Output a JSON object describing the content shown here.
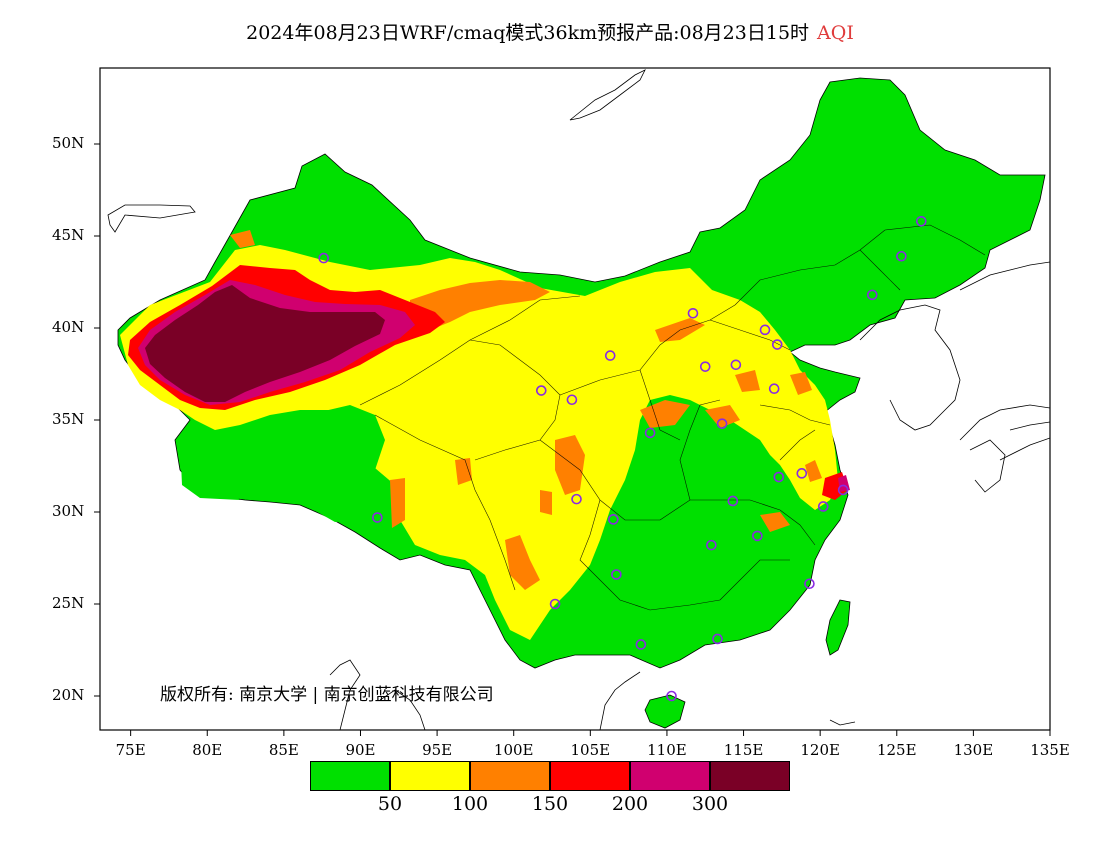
{
  "title": {
    "main": "2024年08月23日WRF/cmaq模式36km预报产品:08月23日15时",
    "variable": "AQI"
  },
  "map": {
    "lon_range": [
      73,
      135
    ],
    "lat_range": [
      18,
      54
    ],
    "lat_ticks": [
      "50N",
      "45N",
      "40N",
      "35N",
      "30N",
      "25N",
      "20N"
    ],
    "lon_ticks": [
      "75E",
      "80E",
      "85E",
      "90E",
      "95E",
      "100E",
      "105E",
      "110E",
      "115E",
      "120E",
      "125E",
      "130E",
      "135E"
    ],
    "background_aqi_color": "#00e000",
    "copyright": "版权所有: 南京大学 | 南京创蓝科技有限公司"
  },
  "legend": {
    "colors": [
      "#00e000",
      "#ffff00",
      "#ff8000",
      "#ff0000",
      "#d0006f",
      "#7a0026"
    ],
    "labels": [
      "50",
      "100",
      "150",
      "200",
      "300"
    ]
  },
  "stations": [
    {
      "lon": 87.6,
      "lat": 43.8
    },
    {
      "lon": 91.1,
      "lat": 29.7
    },
    {
      "lon": 101.8,
      "lat": 36.6
    },
    {
      "lon": 103.8,
      "lat": 36.1
    },
    {
      "lon": 106.3,
      "lat": 38.5
    },
    {
      "lon": 111.7,
      "lat": 40.8
    },
    {
      "lon": 112.5,
      "lat": 37.9
    },
    {
      "lon": 114.5,
      "lat": 38.0
    },
    {
      "lon": 116.4,
      "lat": 39.9
    },
    {
      "lon": 117.2,
      "lat": 39.1
    },
    {
      "lon": 117.0,
      "lat": 36.7
    },
    {
      "lon": 113.6,
      "lat": 34.8
    },
    {
      "lon": 108.9,
      "lat": 34.3
    },
    {
      "lon": 104.1,
      "lat": 30.7
    },
    {
      "lon": 106.5,
      "lat": 29.6
    },
    {
      "lon": 106.7,
      "lat": 26.6
    },
    {
      "lon": 102.7,
      "lat": 25.0
    },
    {
      "lon": 108.3,
      "lat": 22.8
    },
    {
      "lon": 113.3,
      "lat": 23.1
    },
    {
      "lon": 110.3,
      "lat": 20.0
    },
    {
      "lon": 112.9,
      "lat": 28.2
    },
    {
      "lon": 114.3,
      "lat": 30.6
    },
    {
      "lon": 115.9,
      "lat": 28.7
    },
    {
      "lon": 119.3,
      "lat": 26.1
    },
    {
      "lon": 120.2,
      "lat": 30.3
    },
    {
      "lon": 118.8,
      "lat": 32.1
    },
    {
      "lon": 117.3,
      "lat": 31.9
    },
    {
      "lon": 121.5,
      "lat": 31.2
    },
    {
      "lon": 123.4,
      "lat": 41.8
    },
    {
      "lon": 125.3,
      "lat": 43.9
    },
    {
      "lon": 126.6,
      "lat": 45.8
    }
  ]
}
